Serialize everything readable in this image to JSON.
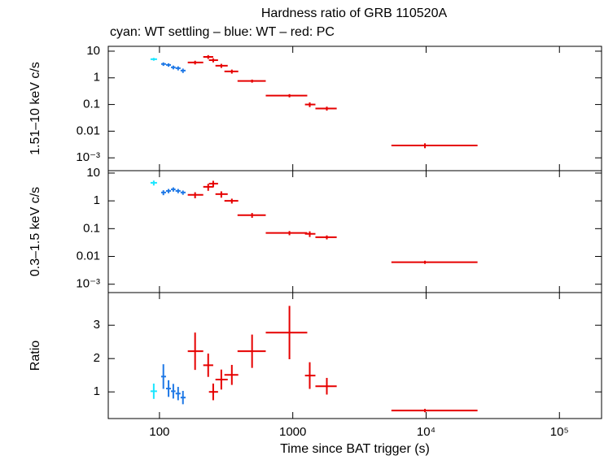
{
  "chart_data": [
    {
      "type": "errorbar",
      "title": "Hardness ratio of GRB 110520A",
      "subtitle": "cyan: WT settling – blue: WT – red: PC",
      "y_label": "1.51–10 keV c/s",
      "y_log": true,
      "xlim": [
        41.3,
        207000
      ],
      "x_log": true,
      "ylim": [
        0.00033,
        15.2
      ],
      "yticks": [
        {
          "value": 10,
          "label": "10"
        },
        {
          "value": 1,
          "label": "1"
        },
        {
          "value": 0.1,
          "label": "0.1"
        },
        {
          "value": 0.01,
          "label": "0.01"
        },
        {
          "value": 0.001,
          "label": "10⁻³"
        }
      ],
      "series": [
        {
          "color": "#19e6ff",
          "x": [
            90.6
          ],
          "x_low": [
            85.7
          ],
          "x_high": [
            95.9
          ],
          "values": [
            5.0
          ],
          "yerr": [
            0.6
          ]
        },
        {
          "color": "#1e78e6",
          "x": [
            107,
            117,
            127,
            138,
            150
          ],
          "x_low": [
            103,
            112,
            122,
            132,
            144
          ],
          "x_high": [
            112,
            122,
            132,
            144,
            157
          ],
          "values": [
            3.3,
            3.05,
            2.48,
            2.3,
            1.87
          ],
          "yerr": [
            0.5,
            0.45,
            0.4,
            0.4,
            0.35
          ]
        },
        {
          "color": "#e60000",
          "x": [
            185,
            232,
            253,
            291,
            349,
            495,
            944,
            1340,
            1800,
            9800
          ],
          "x_low": [
            163,
            213,
            235,
            263,
            307,
            385,
            627,
            1234,
            1478,
            5490
          ],
          "x_high": [
            213,
            253,
            275,
            325,
            390,
            627,
            1284,
            1478,
            2135,
            24300
          ],
          "values": [
            3.77,
            6.1,
            4.6,
            2.85,
            1.74,
            0.76,
            0.215,
            0.1,
            0.071,
            0.0029
          ],
          "yerr": [
            0.6,
            1.0,
            0.8,
            0.5,
            0.3,
            0.1,
            0.03,
            0.02,
            0.012,
            0.0006
          ]
        }
      ]
    },
    {
      "type": "errorbar",
      "y_label": "0.3–1.5 keV c/s",
      "y_log": true,
      "xlim": [
        41.3,
        207000
      ],
      "x_log": true,
      "ylim": [
        0.0005,
        12.2
      ],
      "yticks": [
        {
          "value": 10,
          "label": "10"
        },
        {
          "value": 1,
          "label": "1"
        },
        {
          "value": 0.1,
          "label": "0.1"
        },
        {
          "value": 0.01,
          "label": "0.01"
        },
        {
          "value": 0.001,
          "label": "10⁻³"
        }
      ],
      "series": [
        {
          "color": "#19e6ff",
          "x": [
            90.6
          ],
          "x_low": [
            85.7
          ],
          "x_high": [
            95.9
          ],
          "values": [
            4.47
          ],
          "yerr": [
            0.9
          ]
        },
        {
          "color": "#1e78e6",
          "x": [
            107,
            117,
            127,
            138,
            150
          ],
          "x_low": [
            103,
            112,
            122,
            132,
            144
          ],
          "x_high": [
            112,
            122,
            132,
            144,
            157
          ],
          "values": [
            2.0,
            2.28,
            2.6,
            2.28,
            2.0
          ],
          "yerr": [
            0.4,
            0.4,
            0.45,
            0.4,
            0.35
          ]
        },
        {
          "color": "#e60000",
          "x": [
            185,
            232,
            253,
            291,
            349,
            495,
            944,
            1340,
            1800,
            9800
          ],
          "x_low": [
            163,
            213,
            235,
            263,
            307,
            385,
            627,
            1234,
            1478,
            5490
          ],
          "x_high": [
            213,
            253,
            275,
            325,
            390,
            627,
            1284,
            1478,
            2135,
            24300
          ],
          "values": [
            1.64,
            3.2,
            4.17,
            1.75,
            1.0,
            0.305,
            0.07,
            0.065,
            0.049,
            0.0062
          ],
          "yerr": [
            0.4,
            0.9,
            1.1,
            0.45,
            0.2,
            0.06,
            0.012,
            0.015,
            0.008,
            0.0008
          ]
        }
      ]
    },
    {
      "type": "errorbar",
      "y_label": "Ratio",
      "y_log": false,
      "xlim": [
        41.3,
        207000
      ],
      "x_log": true,
      "x_label": "Time since BAT trigger (s)",
      "ylim": [
        0.2,
        3.98
      ],
      "yticks": [
        1,
        2,
        3
      ],
      "xticks": [
        100,
        1000,
        {
          "value": 10000,
          "label": "10⁴"
        },
        {
          "value": 100000,
          "label": "10⁵"
        }
      ],
      "series": [
        {
          "color": "#19e6ff",
          "x": [
            90.6
          ],
          "x_low": [
            85.7
          ],
          "x_high": [
            95.9
          ],
          "values": [
            1.02
          ],
          "yerr": [
            0.23
          ]
        },
        {
          "color": "#1e78e6",
          "x": [
            107,
            117,
            127,
            138,
            150
          ],
          "x_low": [
            103,
            112,
            122,
            132,
            144
          ],
          "x_high": [
            112,
            122,
            132,
            144,
            157
          ],
          "values": [
            1.46,
            1.1,
            1.02,
            0.95,
            0.83
          ],
          "yerr": [
            0.37,
            0.25,
            0.22,
            0.2,
            0.2
          ]
        },
        {
          "color": "#e60000",
          "x": [
            185,
            232,
            253,
            291,
            349,
            495,
            944,
            1340,
            1800,
            9800
          ],
          "x_low": [
            163,
            213,
            235,
            263,
            307,
            385,
            627,
            1234,
            1478,
            5490
          ],
          "x_high": [
            213,
            253,
            275,
            325,
            390,
            627,
            1284,
            1478,
            2135,
            24300
          ],
          "values": [
            2.22,
            1.8,
            1.0,
            1.37,
            1.51,
            2.22,
            2.78,
            1.49,
            1.17,
            0.44
          ],
          "yerr": [
            0.56,
            0.35,
            0.25,
            0.3,
            0.3,
            0.5,
            0.8,
            0.4,
            0.25,
            0.05
          ]
        }
      ]
    }
  ]
}
